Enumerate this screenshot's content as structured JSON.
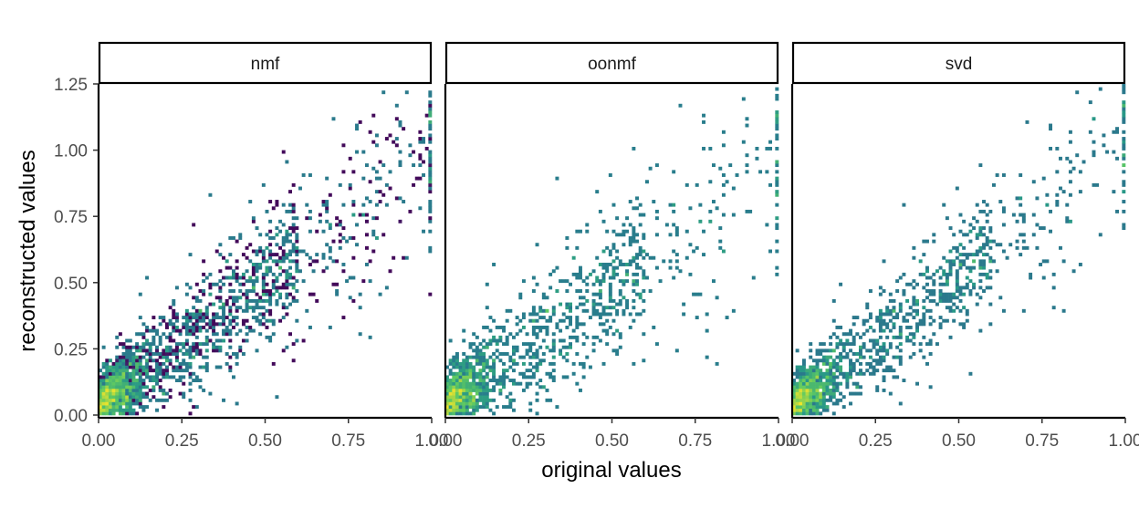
{
  "chart_data": {
    "type": "heatmap",
    "description_kind": "faceted 2D binned density",
    "xlabel": "original values",
    "ylabel": "reconstructed values",
    "xlim": [
      0,
      1
    ],
    "ylim": [
      0,
      1.25
    ],
    "x_ticks": [
      {
        "value": 0.0,
        "label": "0.00"
      },
      {
        "value": 0.25,
        "label": "0.25"
      },
      {
        "value": 0.5,
        "label": "0.50"
      },
      {
        "value": 0.75,
        "label": "0.75"
      },
      {
        "value": 1.0,
        "label": "1.00"
      }
    ],
    "y_ticks": [
      {
        "value": 0.0,
        "label": "0.00"
      },
      {
        "value": 0.25,
        "label": "0.25"
      },
      {
        "value": 0.5,
        "label": "0.50"
      },
      {
        "value": 0.75,
        "label": "0.75"
      },
      {
        "value": 1.0,
        "label": "1.00"
      },
      {
        "value": 1.25,
        "label": "1.25"
      }
    ],
    "grid": false,
    "color_scale": [
      "#440154",
      "#3b528b",
      "#21918c",
      "#5ec962",
      "#fde725"
    ],
    "bins": 100,
    "facets": [
      {
        "label": "nmf",
        "slope": 0.95,
        "spread": 0.16
      },
      {
        "label": "oonmf",
        "slope": 0.92,
        "spread": 0.19
      },
      {
        "label": "svd",
        "slope": 1.0,
        "spread": 0.14
      }
    ]
  }
}
